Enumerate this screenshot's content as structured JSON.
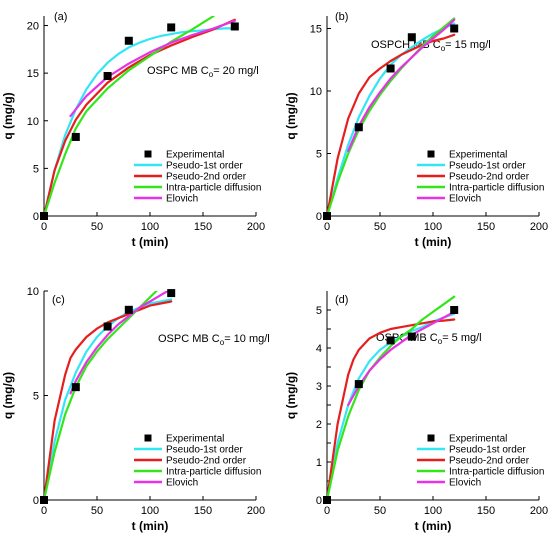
{
  "colors": {
    "experimental": "#000000",
    "pseudo_first": "#33e6f5",
    "pseudo_second": "#e61e1e",
    "intra_particle": "#33e61a",
    "elovich": "#e633e6"
  },
  "chart_data": [
    {
      "type": "scatter",
      "panel_label": "(a)",
      "annotation": "OSPC MB C",
      "annotation_sub": "o",
      "annotation_tail": "= 20 mg/l",
      "xlabel": "t (min)",
      "ylabel": "q (mg/g)",
      "xlim": [
        0,
        200
      ],
      "ylim": [
        0,
        21
      ],
      "xticks": [
        0,
        50,
        100,
        150,
        200
      ],
      "yticks": [
        0,
        5,
        10,
        15,
        20
      ],
      "legend_position": "bottom-right",
      "series": [
        {
          "name": "Experimental",
          "kind": "points",
          "x": [
            0,
            30,
            60,
            80,
            120,
            180
          ],
          "y": [
            0,
            8.3,
            14.7,
            18.4,
            19.8,
            19.9
          ]
        },
        {
          "name": "Pseudo-1st order",
          "kind": "line",
          "x": [
            0,
            10,
            20,
            30,
            40,
            50,
            60,
            70,
            80,
            90,
            100,
            110,
            120,
            130,
            140,
            150,
            160,
            170,
            180
          ],
          "y": [
            0,
            4.8,
            8.5,
            11.2,
            13.3,
            14.9,
            16.1,
            17.0,
            17.7,
            18.2,
            18.6,
            18.9,
            19.1,
            19.3,
            19.4,
            19.5,
            19.6,
            19.7,
            19.7
          ]
        },
        {
          "name": "Pseudo-2nd order",
          "kind": "line",
          "x": [
            0,
            10,
            20,
            30,
            40,
            60,
            80,
            100,
            120,
            140,
            160,
            180
          ],
          "y": [
            0,
            4.8,
            7.9,
            10.1,
            11.7,
            14.0,
            15.6,
            16.9,
            17.9,
            18.8,
            19.6,
            20.6
          ]
        },
        {
          "name": "Intra-particle diffusion",
          "kind": "line",
          "x": [
            0,
            10,
            20,
            30,
            40,
            60,
            80,
            100,
            120,
            140,
            160
          ],
          "y": [
            0,
            3.5,
            6.5,
            9.2,
            11.0,
            13.4,
            15.3,
            16.8,
            18.3,
            19.6,
            21.0
          ]
        },
        {
          "name": "Elovich",
          "kind": "line",
          "x": [
            25,
            40,
            60,
            80,
            100,
            120,
            140,
            160,
            180
          ],
          "y": [
            10.5,
            12.6,
            14.6,
            16.0,
            17.2,
            18.2,
            19.0,
            19.7,
            20.5
          ]
        }
      ]
    },
    {
      "type": "scatter",
      "panel_label": "(b)",
      "annotation": "OSPCH MB C",
      "annotation_sub": "o",
      "annotation_tail": "= 15 mg/l",
      "xlabel": "t (min)",
      "ylabel": "q (mg/g)",
      "xlim": [
        0,
        200
      ],
      "ylim": [
        0,
        16
      ],
      "xticks": [
        0,
        50,
        100,
        150,
        200
      ],
      "yticks": [
        0,
        5,
        10,
        15
      ],
      "legend_position": "bottom-right",
      "series": [
        {
          "name": "Experimental",
          "kind": "points",
          "x": [
            0,
            30,
            60,
            80,
            120
          ],
          "y": [
            0,
            7.1,
            11.8,
            14.3,
            15.0
          ]
        },
        {
          "name": "Pseudo-1st order",
          "kind": "line",
          "x": [
            0,
            10,
            20,
            30,
            40,
            50,
            60,
            70,
            80,
            90,
            100,
            110,
            120
          ],
          "y": [
            0,
            3.0,
            5.7,
            7.9,
            9.6,
            11.0,
            12.1,
            12.9,
            13.5,
            14.1,
            14.6,
            15.0,
            15.4
          ]
        },
        {
          "name": "Pseudo-2nd order",
          "kind": "line",
          "x": [
            0,
            10,
            20,
            30,
            40,
            50,
            60,
            70,
            80,
            90,
            100,
            110,
            120
          ],
          "y": [
            0,
            4.6,
            7.8,
            9.8,
            11.1,
            11.8,
            12.4,
            12.9,
            13.3,
            13.7,
            14.0,
            14.2,
            14.5
          ]
        },
        {
          "name": "Intra-particle diffusion",
          "kind": "line",
          "x": [
            0,
            10,
            20,
            30,
            40,
            50,
            60,
            70,
            80,
            90,
            100,
            110,
            120
          ],
          "y": [
            0,
            2.7,
            5.0,
            6.9,
            8.4,
            9.7,
            10.8,
            11.8,
            12.7,
            13.6,
            14.4,
            15.1,
            15.8
          ]
        },
        {
          "name": "Elovich",
          "kind": "line",
          "x": [
            20,
            30,
            40,
            50,
            60,
            70,
            80,
            90,
            100,
            110,
            120
          ],
          "y": [
            5.2,
            7.2,
            8.7,
            9.9,
            11.0,
            11.9,
            12.7,
            13.5,
            14.2,
            14.9,
            15.7
          ]
        }
      ]
    },
    {
      "type": "scatter",
      "panel_label": "(c)",
      "annotation": "OSPC MB C",
      "annotation_sub": "o",
      "annotation_tail": "= 10 mg/l",
      "xlabel": "t (min)",
      "ylabel": "q (mg/g)",
      "xlim": [
        0,
        200
      ],
      "ylim": [
        0,
        10
      ],
      "xticks": [
        0,
        50,
        100,
        150,
        200
      ],
      "yticks": [
        0,
        5,
        10
      ],
      "legend_position": "bottom-right",
      "series": [
        {
          "name": "Experimental",
          "kind": "points",
          "x": [
            0,
            30,
            60,
            80,
            120
          ],
          "y": [
            0,
            5.4,
            8.3,
            9.1,
            9.9
          ]
        },
        {
          "name": "Pseudo-1st order",
          "kind": "line",
          "x": [
            0,
            10,
            20,
            30,
            40,
            50,
            60,
            70,
            80,
            90,
            100,
            110,
            120
          ],
          "y": [
            0,
            2.8,
            4.8,
            6.1,
            7.1,
            7.8,
            8.3,
            8.7,
            9.0,
            9.2,
            9.4,
            9.5,
            9.6
          ]
        },
        {
          "name": "Pseudo-2nd order",
          "kind": "line",
          "x": [
            0,
            10,
            20,
            25,
            30,
            40,
            50,
            60,
            70,
            80,
            90,
            100,
            110,
            120
          ],
          "y": [
            0,
            3.8,
            6.0,
            6.8,
            7.2,
            7.8,
            8.2,
            8.5,
            8.7,
            8.9,
            9.1,
            9.3,
            9.4,
            9.5
          ]
        },
        {
          "name": "Intra-particle diffusion",
          "kind": "line",
          "x": [
            0,
            10,
            20,
            30,
            40,
            50,
            60,
            70,
            80,
            90,
            100,
            110
          ],
          "y": [
            0,
            2.3,
            4.1,
            5.4,
            6.4,
            7.1,
            7.7,
            8.2,
            8.7,
            9.2,
            9.7,
            10.2
          ]
        },
        {
          "name": "Elovich",
          "kind": "line",
          "x": [
            25,
            30,
            40,
            50,
            60,
            70,
            80,
            90,
            100,
            110,
            120
          ],
          "y": [
            5.1,
            5.7,
            6.6,
            7.3,
            7.9,
            8.4,
            8.8,
            9.2,
            9.5,
            9.8,
            10.1
          ]
        }
      ]
    },
    {
      "type": "scatter",
      "panel_label": "(d)",
      "annotation": "OSPC MB C",
      "annotation_sub": "o",
      "annotation_tail": "= 5 mg/l",
      "xlabel": "t (min)",
      "ylabel": "q (mg/g)",
      "xlim": [
        0,
        200
      ],
      "ylim": [
        0,
        5.5
      ],
      "xticks": [
        0,
        50,
        100,
        150,
        200
      ],
      "yticks": [
        0,
        0.5,
        1,
        1.5,
        2,
        2.5,
        3,
        3.5,
        4,
        4.5,
        5
      ],
      "ytick_labels": [
        "0",
        "",
        "1",
        "",
        "2",
        "",
        "3",
        "",
        "4",
        "",
        "5"
      ],
      "legend_position": "bottom-right",
      "series": [
        {
          "name": "Experimental",
          "kind": "points",
          "x": [
            0,
            30,
            60,
            80,
            120
          ],
          "y": [
            0,
            3.05,
            4.2,
            4.3,
            5.0
          ]
        },
        {
          "name": "Pseudo-1st order",
          "kind": "line",
          "x": [
            0,
            10,
            20,
            30,
            40,
            50,
            60,
            70,
            80,
            90,
            100,
            110,
            120
          ],
          "y": [
            0,
            1.5,
            2.5,
            3.2,
            3.65,
            3.95,
            4.15,
            4.3,
            4.45,
            4.55,
            4.7,
            4.8,
            4.9
          ]
        },
        {
          "name": "Pseudo-2nd order",
          "kind": "line",
          "x": [
            0,
            10,
            20,
            25,
            30,
            40,
            50,
            60,
            70,
            80,
            90,
            100,
            110,
            120
          ],
          "y": [
            0,
            2.0,
            3.3,
            3.7,
            3.95,
            4.25,
            4.4,
            4.5,
            4.55,
            4.6,
            4.65,
            4.7,
            4.72,
            4.75
          ]
        },
        {
          "name": "Intra-particle diffusion",
          "kind": "line",
          "x": [
            0,
            10,
            20,
            30,
            40,
            50,
            60,
            70,
            80,
            90,
            100,
            110,
            120
          ],
          "y": [
            0,
            1.3,
            2.2,
            2.9,
            3.4,
            3.75,
            4.05,
            4.3,
            4.5,
            4.75,
            4.95,
            5.15,
            5.35
          ]
        },
        {
          "name": "Elovich",
          "kind": "line",
          "x": [
            20,
            30,
            40,
            50,
            60,
            70,
            80,
            90,
            100,
            110,
            120
          ],
          "y": [
            2.5,
            3.0,
            3.4,
            3.7,
            3.95,
            4.15,
            4.35,
            4.5,
            4.65,
            4.8,
            4.95
          ]
        }
      ]
    }
  ]
}
